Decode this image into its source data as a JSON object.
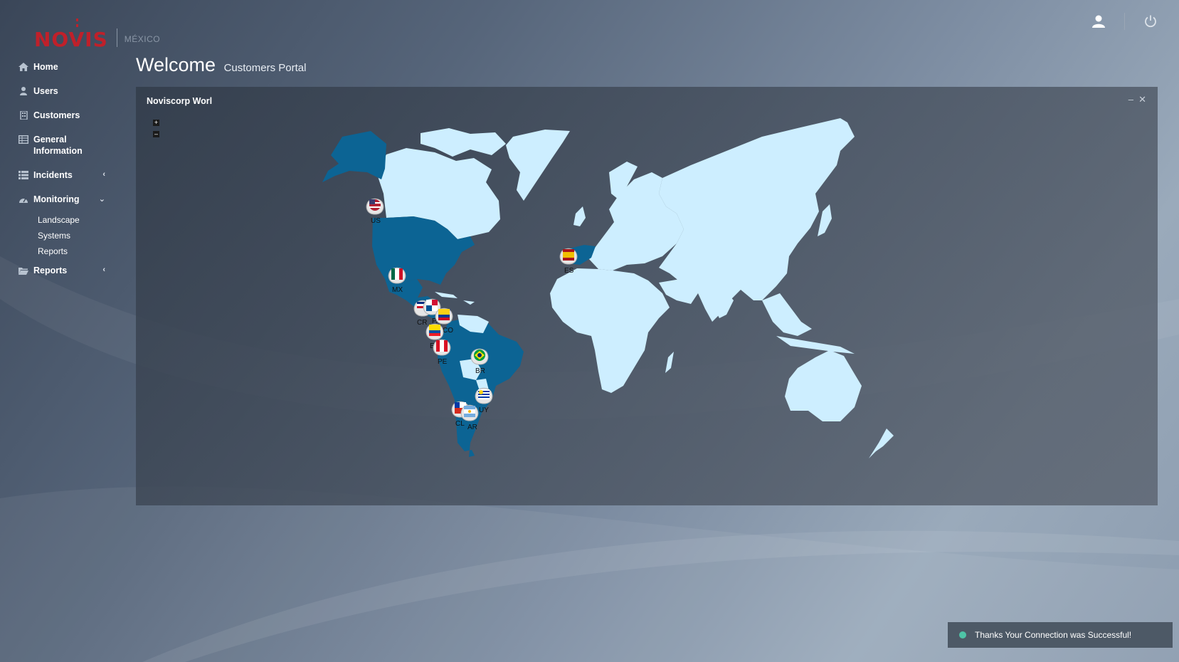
{
  "brand": {
    "name": "NOVIS",
    "country": "MÉXICO"
  },
  "sidebar": {
    "items": [
      {
        "label": "Home",
        "icon": "home-icon"
      },
      {
        "label": "Users",
        "icon": "user-icon"
      },
      {
        "label": "Customers",
        "icon": "building-icon"
      },
      {
        "label": "General Information",
        "icon": "table-icon"
      },
      {
        "label": "Incidents",
        "icon": "list-icon",
        "arrow": "‹"
      },
      {
        "label": "Monitoring",
        "icon": "dashboard-icon",
        "arrow": "⌄"
      },
      {
        "label": "Reports",
        "icon": "folder-icon",
        "arrow": "‹"
      }
    ],
    "monitoring_sub": [
      "Landscape",
      "Systems",
      "Reports"
    ]
  },
  "header": {
    "title": "Welcome",
    "subtitle": "Customers Portal"
  },
  "panel": {
    "title": "Noviscorp Worl",
    "minimize": "–",
    "close": "✕",
    "zoom_in": "+",
    "zoom_out": "–"
  },
  "map": {
    "highlight_color": "#0c6494",
    "land_color": "#cdeeff",
    "markers": [
      "US",
      "MX",
      "CR",
      "PA",
      "CO",
      "EC",
      "PE",
      "BR",
      "UY",
      "CL",
      "AR",
      "ES"
    ]
  },
  "toast": {
    "message": "Thanks Your Connection was Successful!"
  }
}
